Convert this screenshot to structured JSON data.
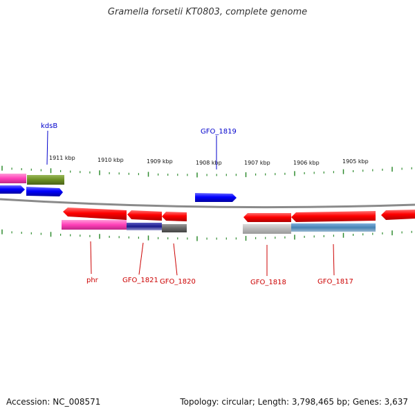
{
  "title": "Gramella forsetii KT0803, complete genome",
  "footer": {
    "accession": "Accession: NC_008571",
    "summary": "Topology: circular; Length: 3,798,465 bp; Genes: 3,637"
  },
  "colors": {
    "backbone": "#888888",
    "tick": "#2e8b2e",
    "forward_label": "#0000cc",
    "reverse_label": "#cc0000",
    "red": "#ff0000",
    "blue": "#0000ff",
    "magenta": "#ff44bb",
    "olive": "#6b8e23",
    "navy": "#1a1a8c",
    "gray": "#666666",
    "lightgray": "#b8b8b8",
    "steelblue": "#4682b4"
  },
  "scale_labels": [
    "1911 kbp",
    "1910 kbp",
    "1909 kbp",
    "1908 kbp",
    "1907 kbp",
    "1906 kbp",
    "1905 kbp"
  ],
  "gene_labels": [
    "kdsB",
    "GFO_1819",
    "phr",
    "GFO_1821",
    "GFO_1820",
    "GFO_1818",
    "GFO_1817"
  ]
}
